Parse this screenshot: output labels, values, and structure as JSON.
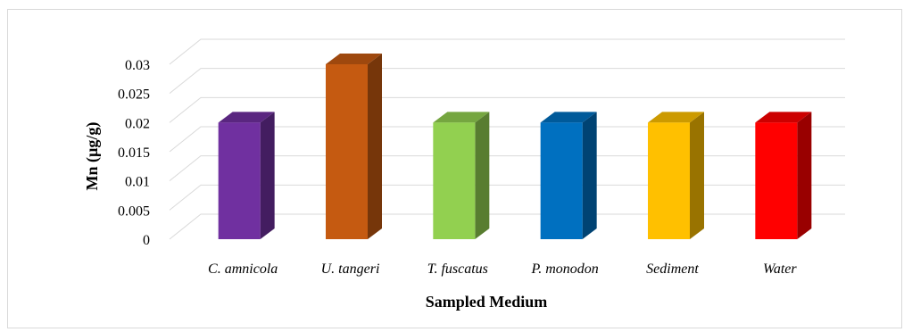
{
  "chart_data": {
    "type": "bar",
    "style": "3d-column",
    "categories": [
      "C. amnicola",
      "U. tangeri",
      "T. fuscatus",
      "P. monodon",
      "Sediment",
      "Water"
    ],
    "values": [
      0.02,
      0.03,
      0.02,
      0.02,
      0.02,
      0.02
    ],
    "colors": [
      "#7030A0",
      "#C55A11",
      "#92D050",
      "#0070C0",
      "#FFC000",
      "#FF0000"
    ],
    "xlabel": "Sampled Medium",
    "ylabel": "Mn (µg/g)",
    "ylim": [
      0,
      0.03
    ],
    "yticks": [
      "0",
      "0.005",
      "0.01",
      "0.015",
      "0.02",
      "0.025",
      "0.03"
    ],
    "grid": true,
    "legend": "none"
  }
}
